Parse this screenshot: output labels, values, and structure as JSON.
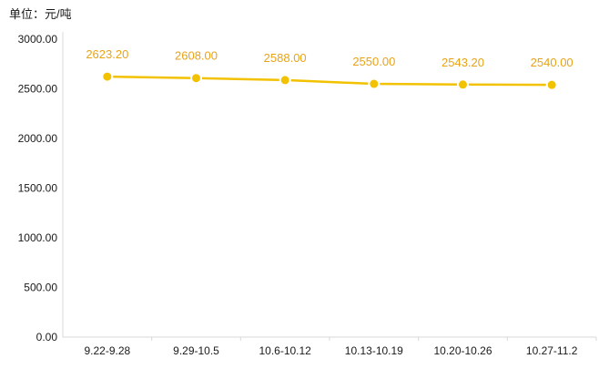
{
  "chart_data": {
    "type": "line",
    "unit_label": "单位：元/吨",
    "categories": [
      "9.22-9.28",
      "9.29-10.5",
      "10.6-10.12",
      "10.13-10.19",
      "10.20-10.26",
      "10.27-11.2"
    ],
    "values": [
      2623.2,
      2608.0,
      2588.0,
      2550.0,
      2543.2,
      2540.0
    ],
    "value_labels": [
      "2623.20",
      "2608.00",
      "2588.00",
      "2550.00",
      "2543.20",
      "2540.00"
    ],
    "y_ticks": [
      "0.00",
      "500.00",
      "1000.00",
      "1500.00",
      "2000.00",
      "2500.00",
      "3000.00"
    ],
    "ylim": [
      0,
      3000
    ],
    "grid": false,
    "line_color": "#F2C100",
    "marker_fill": "#F2C100",
    "marker_stroke": "#ffffff",
    "label_color": "#E8A317",
    "axis_color": "#D9D9D9",
    "text_color": "#1a1a1a"
  }
}
